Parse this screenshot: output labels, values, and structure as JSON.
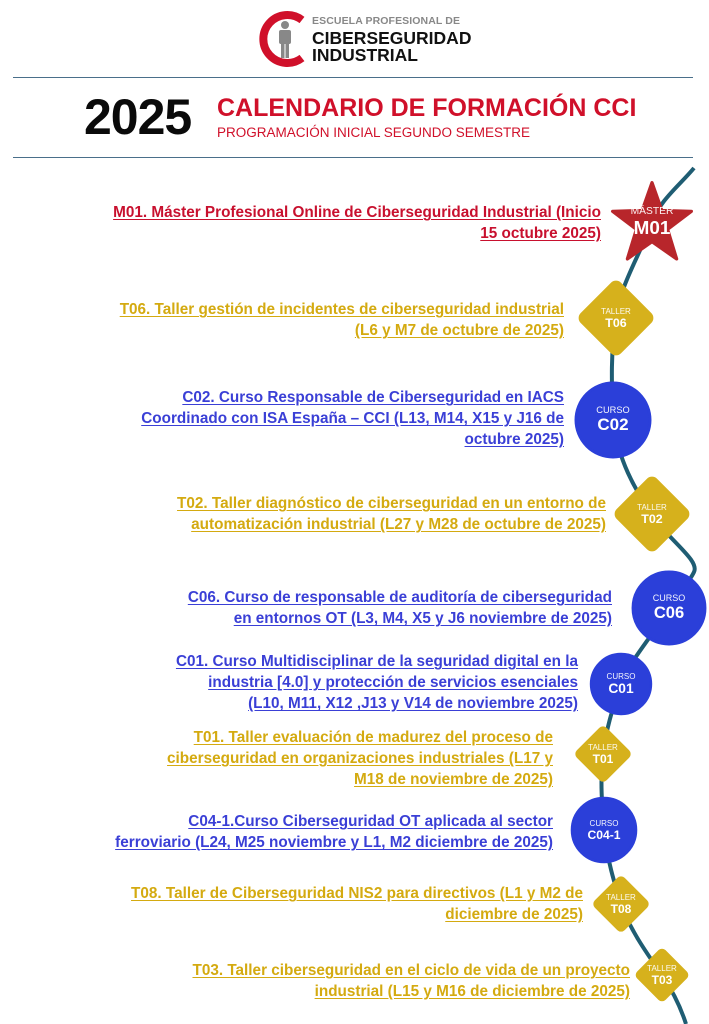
{
  "logo": {
    "line1": "ESCUELA PROFESIONAL DE",
    "line2": "CIBERSEGURIDAD",
    "line3": "INDUSTRIAL"
  },
  "header": {
    "year": "2025",
    "title": "CALENDARIO DE FORMACIÓN CCI",
    "subtitle": "PROGRAMACIÓN INICIAL SEGUNDO SEMESTRE"
  },
  "colors": {
    "master": "#c8102e",
    "taller": "#d4aa10",
    "curso": "#3a3fd6",
    "master_badge": "#b8262b",
    "taller_badge": "#d6b11c",
    "curso_badge": "#2b3fd9",
    "timeline": "#1f5d73"
  },
  "entries": [
    {
      "type": "master",
      "code": "M01",
      "kind": "MÁSTER",
      "lines": [
        "M01. Máster Profesional Online de Ciberseguridad Industrial (Inicio",
        "15 octubre 2025)"
      ]
    },
    {
      "type": "taller",
      "code": "T06",
      "kind": "TALLER",
      "lines": [
        "T06. Taller gestión de incidentes de ciberseguridad industrial",
        "(L6 y M7 de octubre de 2025)"
      ]
    },
    {
      "type": "curso",
      "code": "C02",
      "kind": "CURSO",
      "lines": [
        "C02. Curso Responsable de Ciberseguridad en IACS",
        "Coordinado con ISA España – CCI (L13, M14, X15 y J16 de",
        "octubre 2025)"
      ]
    },
    {
      "type": "taller",
      "code": "T02",
      "kind": "TALLER",
      "lines": [
        "T02. Taller diagnóstico de ciberseguridad en un entorno de",
        "automatización industrial (L27 y M28 de octubre de 2025)"
      ]
    },
    {
      "type": "curso",
      "code": "C06",
      "kind": "CURSO",
      "lines": [
        "C06. Curso de responsable de auditoría de ciberseguridad",
        "en entornos OT (L3, M4, X5 y J6 noviembre de 2025)"
      ]
    },
    {
      "type": "curso",
      "code": "C01",
      "kind": "CURSO",
      "lines": [
        "C01. Curso Multidisciplinar de la seguridad digital en la",
        "industria [4.0] y protección de servicios esenciales",
        "(L10, M11, X12 ,J13 y V14 de noviembre 2025)"
      ]
    },
    {
      "type": "taller",
      "code": "T01",
      "kind": "TALLER",
      "lines": [
        "T01. Taller evaluación de madurez del proceso de",
        "ciberseguridad en organizaciones industriales  (L17 y",
        "M18 de noviembre de 2025)"
      ]
    },
    {
      "type": "curso",
      "code": "C04-1",
      "kind": "CURSO",
      "lines": [
        "C04-1.Curso Ciberseguridad OT aplicada al sector",
        "ferroviario (L24, M25 noviembre y L1, M2 diciembre de 2025)"
      ]
    },
    {
      "type": "taller",
      "code": "T08",
      "kind": "TALLER",
      "lines": [
        "T08. Taller de Ciberseguridad NIS2 para directivos (L1 y M2 de",
        "diciembre de 2025)"
      ]
    },
    {
      "type": "taller",
      "code": "T03",
      "kind": "TALLER",
      "lines": [
        "T03. Taller ciberseguridad en el ciclo de vida de un proyecto",
        "industrial (L15 y M16 de diciembre de 2025)"
      ]
    }
  ]
}
